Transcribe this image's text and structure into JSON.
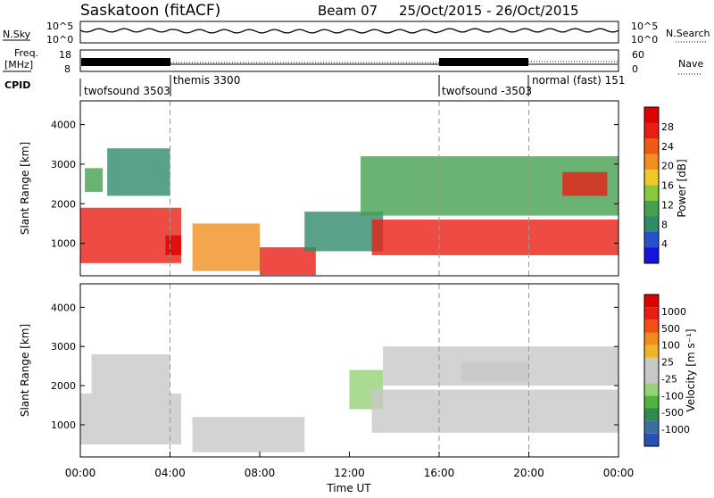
{
  "header": {
    "station": "Saskatoon (fitACF)",
    "beam": "Beam 07",
    "dates": "25/Oct/2015 - 26/Oct/2015"
  },
  "nsky_panel": {
    "label": "N.Sky",
    "right_label": "N.Search",
    "ticks_left": [
      "10^5",
      "10^0"
    ],
    "ticks_right": [
      "10^5",
      "10^0"
    ]
  },
  "freq_panel": {
    "label_1": "Freq.",
    "label_2": "[MHz]",
    "right_label": "Nave",
    "ticks_left": [
      "18",
      "8"
    ],
    "ticks_right": [
      "60",
      "0"
    ]
  },
  "cpid_panel": {
    "label": "CPID",
    "segments": [
      {
        "label": "twofsound 3503",
        "start_h": 0,
        "end_h": 4
      },
      {
        "label": "themis 3300",
        "start_h": 4,
        "end_h": 16
      },
      {
        "label": "twofsound -3503",
        "start_h": 16,
        "end_h": 20
      },
      {
        "label": "normal (fast) 151",
        "start_h": 20,
        "end_h": 24
      }
    ]
  },
  "colors": {
    "power_scale": [
      "#1414dc",
      "#2a52c8",
      "#2f8a6a",
      "#46a050",
      "#8cc83c",
      "#f0c828",
      "#f09020",
      "#f05a14",
      "#e81e14",
      "#dc0000"
    ],
    "velocity_scale": [
      "#2850b4",
      "#3c6ea0",
      "#2d8a50",
      "#50b43c",
      "#96d278",
      "#c8c8c8",
      "#c8c8c8",
      "#f0b428",
      "#f08c1e",
      "#f05014",
      "#e81e14",
      "#dc0000"
    ]
  },
  "chart_data": [
    {
      "type": "heatmap",
      "name": "power",
      "ylabel": "Slant Range [km]",
      "y_ticks": [
        1000,
        2000,
        3000,
        4000
      ],
      "ylim": [
        180,
        4600
      ],
      "xlim": [
        0,
        24
      ],
      "colorbar": {
        "label": "Power [dB]",
        "ticks": [
          "4",
          "8",
          "12",
          "16",
          "20",
          "24",
          "28"
        ],
        "range": [
          0,
          30
        ]
      },
      "regions": [
        {
          "x": [
            0.0,
            4.5
          ],
          "y": [
            500,
            1900
          ],
          "value": 24
        },
        {
          "x": [
            3.8,
            4.5
          ],
          "y": [
            700,
            1200
          ],
          "value": 28
        },
        {
          "x": [
            0.2,
            1.0
          ],
          "y": [
            2300,
            2900
          ],
          "value": 10
        },
        {
          "x": [
            1.2,
            4.0
          ],
          "y": [
            2200,
            3400
          ],
          "value": 8
        },
        {
          "x": [
            5.0,
            8.0
          ],
          "y": [
            300,
            1500
          ],
          "value": 18
        },
        {
          "x": [
            8.0,
            10.5
          ],
          "y": [
            200,
            900
          ],
          "value": 26
        },
        {
          "x": [
            10.0,
            13.5
          ],
          "y": [
            800,
            1800
          ],
          "value": 8
        },
        {
          "x": [
            13.0,
            24.0
          ],
          "y": [
            700,
            1600
          ],
          "value": 26
        },
        {
          "x": [
            12.5,
            24.0
          ],
          "y": [
            1700,
            3200
          ],
          "value": 10
        },
        {
          "x": [
            21.5,
            23.5
          ],
          "y": [
            2200,
            2800
          ],
          "value": 24
        }
      ]
    },
    {
      "type": "heatmap",
      "name": "velocity",
      "ylabel": "Slant Range [km]",
      "y_ticks": [
        1000,
        2000,
        3000,
        4000
      ],
      "ylim": [
        180,
        4600
      ],
      "xlim": [
        0,
        24
      ],
      "xlabel": "Time UT",
      "x_ticks": [
        "00:00",
        "04:00",
        "08:00",
        "12:00",
        "16:00",
        "20:00",
        "00:00"
      ],
      "colorbar": {
        "label": "Velocity [m s⁻¹]",
        "ticks": [
          "1000",
          "500",
          "100",
          "25",
          "-25",
          "-100",
          "-500",
          "-1000"
        ],
        "range": [
          -1200,
          1200
        ]
      },
      "regions": [
        {
          "x": [
            0.0,
            4.5
          ],
          "y": [
            500,
            1800
          ],
          "value": 150
        },
        {
          "x": [
            0.5,
            4.0
          ],
          "y": [
            1800,
            2800
          ],
          "value": -200
        },
        {
          "x": [
            5.0,
            10.0
          ],
          "y": [
            300,
            1200
          ],
          "value": 0
        },
        {
          "x": [
            12.0,
            13.5
          ],
          "y": [
            1400,
            2400
          ],
          "value": -300
        },
        {
          "x": [
            13.0,
            24.0
          ],
          "y": [
            800,
            1900
          ],
          "value": 0
        },
        {
          "x": [
            13.5,
            24.0
          ],
          "y": [
            2000,
            3000
          ],
          "value": -150
        },
        {
          "x": [
            17.0,
            20.0
          ],
          "y": [
            2100,
            2600
          ],
          "value": 80
        }
      ]
    }
  ]
}
